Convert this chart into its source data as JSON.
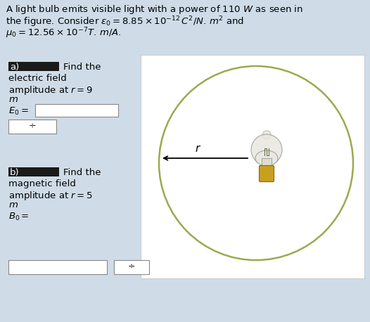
{
  "bg_color": "#cfdce8",
  "panel_bg": "#ffffff",
  "circle_color": "#9aaa50",
  "circle_linewidth": 1.8,
  "title_line1": "A light bulb emits visible light with a power of 110 $W$ as seen in",
  "title_line2": "the figure. Consider $\\varepsilon_0 = 8.85 \\times 10^{-12}\\,C^2/N.\\,m^2$ and",
  "title_line3": "$\\mu_0 = 12.56 \\times 10^{-7}T.\\,m/A$.",
  "font_size": 9.5,
  "part_a_text1": "Find the",
  "part_a_text2": "electric field",
  "part_a_text3": "amplitude at $r = 9$",
  "part_a_text4": "$m$",
  "part_a_eq": "$E_0 =$",
  "part_b_text1": "Find the",
  "part_b_text2": "magnetic field",
  "part_b_text3": "amplitude at $r = 5$",
  "part_b_text4": "$m$",
  "part_b_eq": "$B_0 =$",
  "arrow_label": "$r$",
  "redact_color": "#1a1a1a",
  "bulb_glass_color": "#e8e8e0",
  "bulb_base_color": "#c8a020",
  "bulb_base_dark": "#8a6800"
}
